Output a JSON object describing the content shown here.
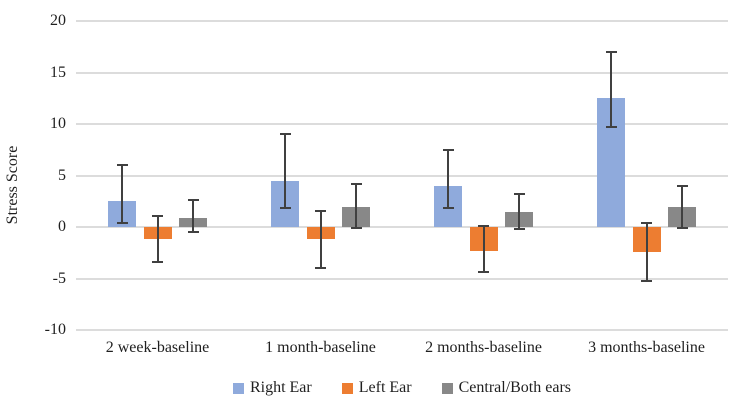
{
  "chart_data": {
    "type": "bar",
    "title": "",
    "xlabel": "",
    "ylabel": "Stress Score",
    "ylim": [
      -10,
      20
    ],
    "yticks": [
      20,
      15,
      10,
      5,
      0,
      -5,
      -10
    ],
    "grid": true,
    "legend_position": "bottom",
    "categories": [
      "2 week-baseline",
      "1 month-baseline",
      "2 months-baseline",
      "3 months-baseline"
    ],
    "series": [
      {
        "name": "Right Ear",
        "color": "#8FAADC",
        "values": [
          2.5,
          4.5,
          4.0,
          12.5
        ],
        "error_low": [
          0.4,
          1.8,
          1.8,
          9.7
        ],
        "error_high": [
          6.0,
          9.0,
          7.5,
          17.0
        ]
      },
      {
        "name": "Left Ear",
        "color": "#ED7D31",
        "values": [
          -1.2,
          -1.2,
          -2.3,
          -2.4
        ],
        "error_low": [
          -3.4,
          -4.0,
          -4.4,
          -5.2
        ],
        "error_high": [
          1.1,
          1.6,
          0.1,
          0.4
        ]
      },
      {
        "name": "Central/Both ears",
        "color": "#888888",
        "values": [
          0.9,
          1.9,
          1.5,
          1.9
        ],
        "error_low": [
          -0.5,
          -0.1,
          -0.2,
          -0.1
        ],
        "error_high": [
          2.6,
          4.2,
          3.2,
          4.0
        ]
      }
    ],
    "colors": {
      "gridline": "#dcdcdc",
      "error_bar": "#404040",
      "text": "#1f1f1f",
      "background": "#ffffff"
    }
  }
}
